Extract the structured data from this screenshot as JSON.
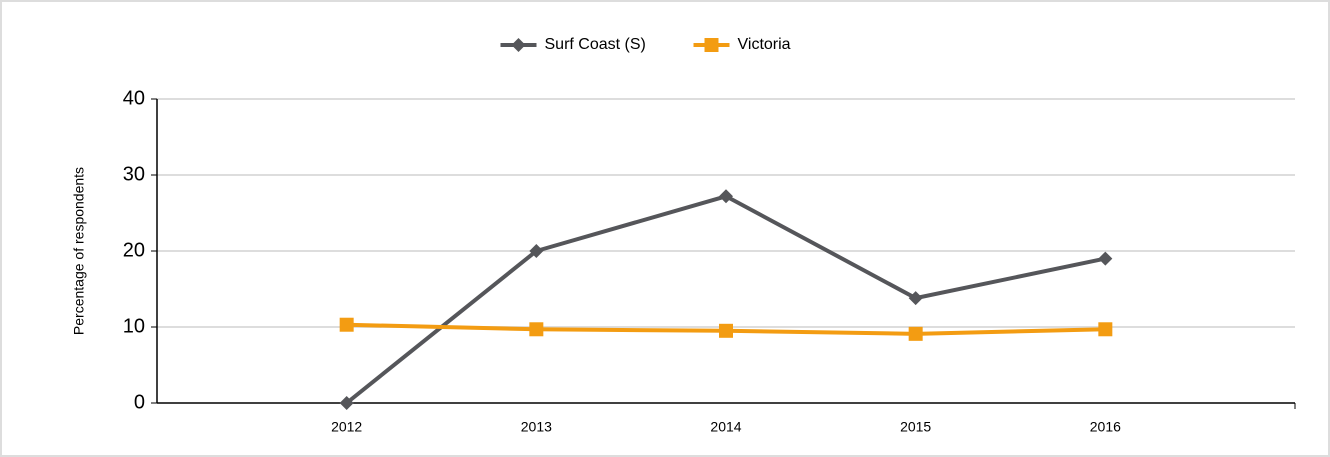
{
  "chart_data": {
    "type": "line",
    "categories": [
      "2012",
      "2013",
      "2014",
      "2015",
      "2016"
    ],
    "series": [
      {
        "name": "Surf Coast (S)",
        "color": "#55565a",
        "marker": "diamond",
        "values": [
          0,
          20,
          27.2,
          13.8,
          19
        ]
      },
      {
        "name": "Victoria",
        "color": "#f39c12",
        "marker": "square",
        "values": [
          10.3,
          9.7,
          9.5,
          9.1,
          9.7
        ]
      }
    ],
    "y_label": "Percentage of respondents",
    "ylim": [
      0,
      40
    ],
    "yticks": [
      0,
      10,
      20,
      30,
      40
    ],
    "grid": true,
    "legend": "top"
  }
}
